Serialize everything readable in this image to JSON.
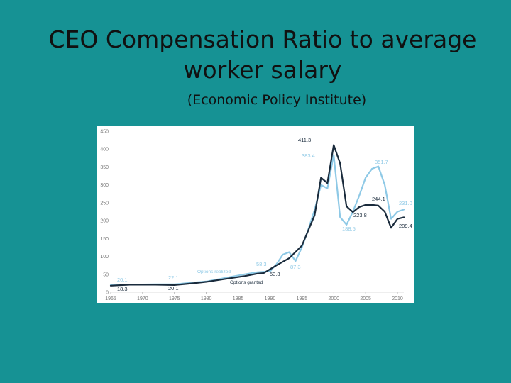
{
  "slide": {
    "title": "CEO Compensation Ratio to average worker salary",
    "subtitle": "(Economic Policy Institute)"
  },
  "chart_data": {
    "type": "line",
    "title": "",
    "xlabel": "",
    "ylabel": "",
    "xlim": [
      1965,
      2011
    ],
    "ylim": [
      0,
      450
    ],
    "x_ticks": [
      "1965",
      "1970",
      "1975",
      "1980",
      "1985",
      "1990",
      "1995",
      "2000",
      "2005",
      "2010"
    ],
    "y_ticks": [
      "0",
      "50",
      "100",
      "150",
      "200",
      "250",
      "300",
      "350",
      "400",
      "450"
    ],
    "grid": false,
    "colors": {
      "options_granted": "#1a2b3c",
      "options_realized": "#8ec9e6"
    },
    "series": [
      {
        "name": "Options granted",
        "x": [
          1965,
          1968,
          1972,
          1975,
          1978,
          1980,
          1983,
          1986,
          1988,
          1989,
          1991,
          1993,
          1995,
          1997,
          1998,
          1999,
          2000,
          2001,
          2002,
          2003,
          2004,
          2005,
          2006,
          2007,
          2008,
          2009,
          2010,
          2011
        ],
        "values": [
          18.3,
          21,
          21,
          20.1,
          25,
          29,
          37,
          45,
          52,
          53.3,
          75,
          95,
          130,
          215,
          320,
          305,
          411.3,
          360,
          240,
          223.8,
          238,
          244.1,
          244,
          242,
          225,
          180,
          205,
          209.4
        ]
      },
      {
        "name": "Options realized",
        "x": [
          1965,
          1968,
          1972,
          1975,
          1978,
          1980,
          1983,
          1986,
          1988,
          1990,
          1991,
          1992,
          1993,
          1994,
          1995,
          1996,
          1997,
          1998,
          1999,
          2000,
          2001,
          2002,
          2003,
          2004,
          2005,
          2006,
          2007,
          2008,
          2009,
          2010,
          2011
        ],
        "values": [
          20.1,
          21,
          22,
          22.1,
          27,
          30,
          40,
          50,
          56,
          58.3,
          78,
          105,
          112,
          87.3,
          125,
          175,
          230,
          300,
          290,
          383.4,
          210,
          188.5,
          225,
          270,
          320,
          345,
          351.7,
          300,
          205,
          225,
          231
        ]
      }
    ],
    "data_labels": [
      {
        "text": "411.3",
        "series": "Options granted"
      },
      {
        "text": "383.4",
        "series": "Options realized"
      },
      {
        "text": "351.7",
        "series": "Options realized"
      },
      {
        "text": "244.1",
        "series": "Options granted"
      },
      {
        "text": "231.0",
        "series": "Options realized"
      },
      {
        "text": "223.8",
        "series": "Options granted"
      },
      {
        "text": "209.4",
        "series": "Options granted"
      },
      {
        "text": "188.5",
        "series": "Options realized"
      },
      {
        "text": "58.3",
        "series": "Options realized"
      },
      {
        "text": "53.3",
        "series": "Options granted"
      },
      {
        "text": "87.3",
        "series": "Options realized"
      },
      {
        "text": "22.1",
        "series": "Options realized"
      },
      {
        "text": "20.1",
        "series": "Options realized"
      },
      {
        "text": "20.1",
        "series": "Options granted"
      },
      {
        "text": "18.3",
        "series": "Options granted"
      }
    ],
    "series_labels": [
      {
        "text": "Options realized",
        "series": "Options realized"
      },
      {
        "text": "Options granted",
        "series": "Options granted"
      }
    ]
  }
}
